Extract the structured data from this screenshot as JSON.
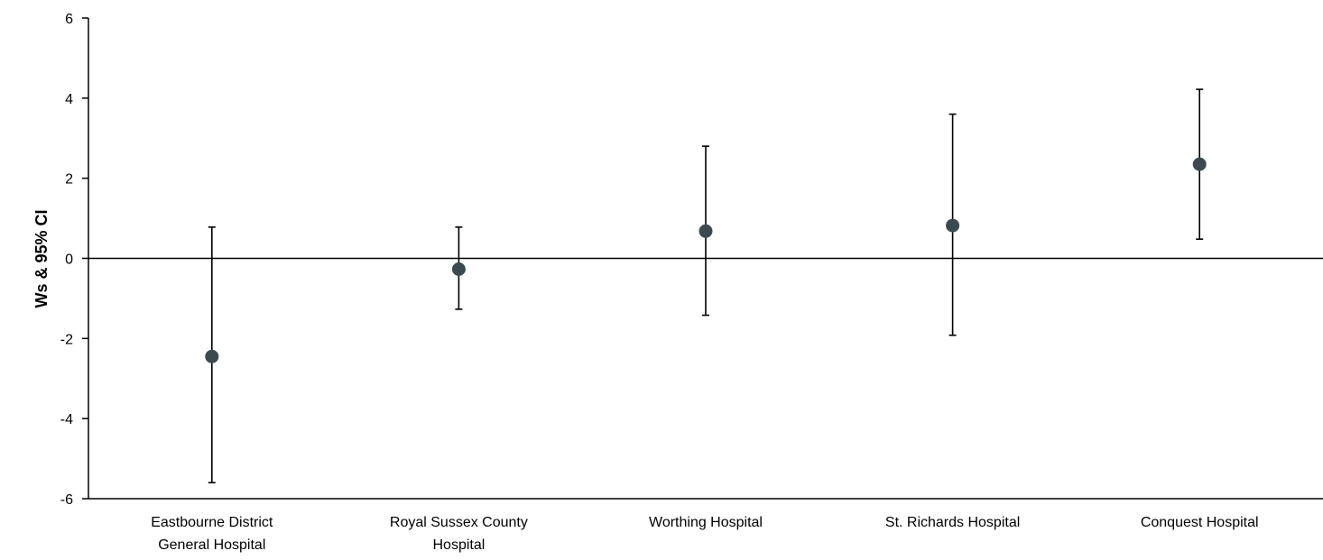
{
  "chart_data": {
    "type": "scatter",
    "title": "",
    "xlabel": "",
    "ylabel": "Ws & 95% CI",
    "ylim": [
      -6,
      6
    ],
    "yticks": [
      "6",
      "4",
      "2",
      "0",
      "-2",
      "-4",
      "-6"
    ],
    "ytick_values": [
      6,
      4,
      2,
      0,
      -2,
      -4,
      -6
    ],
    "categories": [
      [
        "Eastbourne District",
        "General Hospital"
      ],
      [
        "Royal Sussex County",
        "Hospital"
      ],
      [
        "Worthing Hospital"
      ],
      [
        "St. Richards Hospital"
      ],
      [
        "Conquest Hospital"
      ]
    ],
    "series": [
      {
        "values": [
          -2.45,
          -0.27,
          0.68,
          0.82,
          2.35
        ],
        "ci_low": [
          -5.6,
          -1.27,
          -1.42,
          -1.92,
          0.48
        ],
        "ci_high": [
          0.78,
          0.78,
          2.8,
          3.6,
          4.22
        ]
      }
    ],
    "grid": false,
    "legend": "none",
    "colors": {
      "marker": "#3b4a4f",
      "line": "#000000"
    }
  }
}
